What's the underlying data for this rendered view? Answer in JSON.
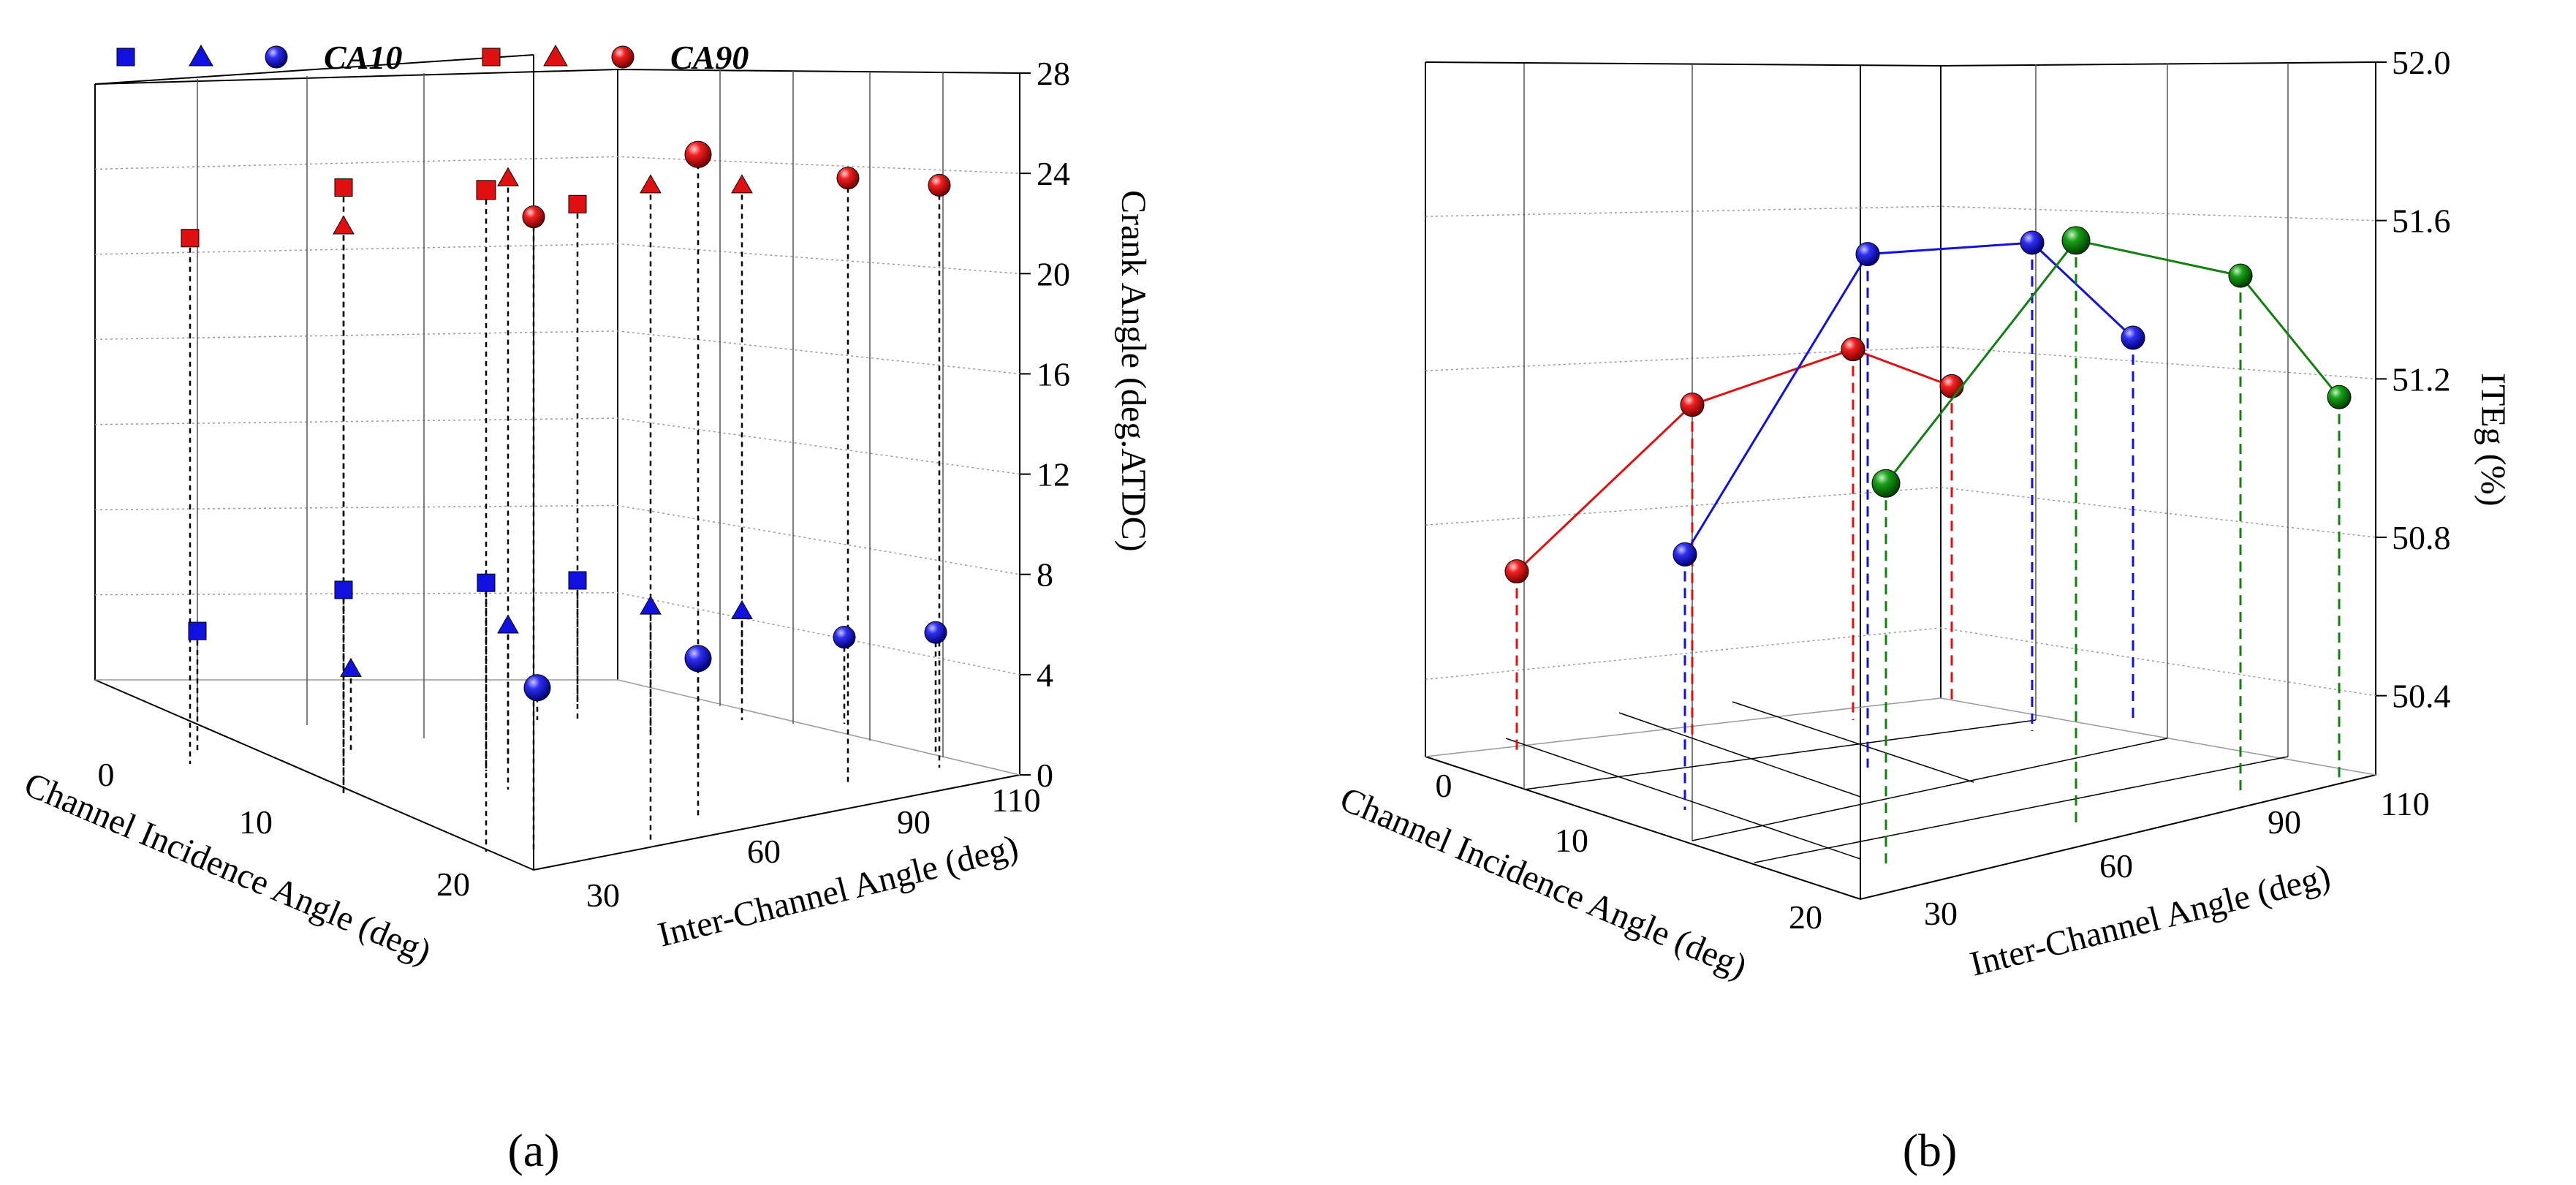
{
  "chart_data": [
    {
      "panel": "a",
      "type": "scatter",
      "caption": "(a)",
      "xlabel": "Channel Incidence Angle (deg)",
      "ylabel": "Inter-Channel Angle (deg)",
      "zlabel": "Crank Angle (deg.ATDC)",
      "x_ticks": [
        "0",
        "10",
        "20"
      ],
      "y_ticks": [
        "30",
        "60",
        "90",
        "110"
      ],
      "z_ticks": [
        "0",
        "4",
        "8",
        "12",
        "16",
        "20",
        "24",
        "28"
      ],
      "zlim": [
        0,
        28
      ],
      "legend": [
        {
          "marker": "square",
          "color": "#1010e0",
          "label": ""
        },
        {
          "marker": "triangle",
          "color": "#1010e0",
          "label": ""
        },
        {
          "marker": "sphere",
          "color": "#1010e0",
          "label": "CA10"
        },
        {
          "marker": "square",
          "color": "#e01010",
          "label": ""
        },
        {
          "marker": "triangle",
          "color": "#e01010",
          "label": ""
        },
        {
          "marker": "sphere",
          "color": "#e01010",
          "label": "CA90"
        }
      ],
      "series": [
        {
          "name": "CA10",
          "color": "#1010e0",
          "points": [
            {
              "marker": "square",
              "z": 6.7
            },
            {
              "marker": "square",
              "z": 7.2
            },
            {
              "marker": "square",
              "z": 7.5
            },
            {
              "marker": "square",
              "z": 7.6
            },
            {
              "marker": "triangle",
              "z": 5.1
            },
            {
              "marker": "triangle",
              "z": 5.7
            },
            {
              "marker": "triangle",
              "z": 6.5
            },
            {
              "marker": "triangle",
              "z": 6.3
            },
            {
              "marker": "sphere",
              "z": 4.3
            },
            {
              "marker": "sphere",
              "z": 4.3
            },
            {
              "marker": "sphere",
              "z": 5.2
            },
            {
              "marker": "sphere",
              "z": 5.4
            }
          ]
        },
        {
          "name": "CA90",
          "color": "#e01010",
          "points": [
            {
              "marker": "square",
              "z": 23.3
            },
            {
              "marker": "square",
              "z": 24.2
            },
            {
              "marker": "square",
              "z": 24.1
            },
            {
              "marker": "square",
              "z": 23.5
            },
            {
              "marker": "triangle",
              "z": 23.8
            },
            {
              "marker": "triangle",
              "z": 24.6
            },
            {
              "marker": "triangle",
              "z": 24.3
            },
            {
              "marker": "triangle",
              "z": 24.3
            },
            {
              "marker": "sphere",
              "z": 24.2
            },
            {
              "marker": "sphere",
              "z": 25.6
            },
            {
              "marker": "sphere",
              "z": 24.6
            },
            {
              "marker": "sphere",
              "z": 24.3
            }
          ]
        }
      ]
    },
    {
      "panel": "b",
      "type": "line",
      "caption": "(b)",
      "xlabel": "Channel Incidence Angle (deg)",
      "ylabel": "Inter-Channel Angle  (deg)",
      "zlabel": "ITEg (%)",
      "x_ticks": [
        "0",
        "10",
        "20"
      ],
      "y_ticks": [
        "30",
        "60",
        "90",
        "110"
      ],
      "z_ticks": [
        "50.4",
        "50.8",
        "51.2",
        "51.6",
        "52.0"
      ],
      "zlim": [
        50.2,
        52.0
      ],
      "series": [
        {
          "name": "red",
          "color": "#e01010",
          "values": [
            50.7,
            51.15,
            51.3,
            51.2
          ]
        },
        {
          "name": "blue",
          "color": "#1010e0",
          "values": [
            50.78,
            51.57,
            51.6,
            51.35
          ]
        },
        {
          "name": "green",
          "color": "#108010",
          "values": [
            51.0,
            51.62,
            51.53,
            51.22
          ]
        }
      ]
    }
  ]
}
